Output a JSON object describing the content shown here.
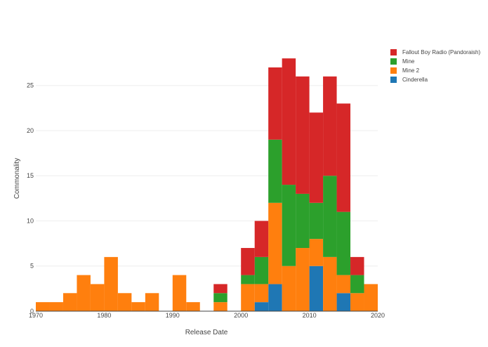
{
  "chart_data": {
    "type": "bar",
    "barmode": "stack",
    "title": "",
    "xlabel": "Release Date",
    "ylabel": "Commonality",
    "xlim": [
      1970,
      2020
    ],
    "ylim": [
      0,
      29.8
    ],
    "x_ticks": [
      "1970",
      "1980",
      "1990",
      "2000",
      "2010",
      "2020"
    ],
    "y_ticks": [
      "0",
      "5",
      "10",
      "15",
      "20",
      "25"
    ],
    "bin_width": 2,
    "bin_starts": [
      1970,
      1972,
      1974,
      1976,
      1978,
      1980,
      1982,
      1984,
      1986,
      1988,
      1990,
      1992,
      1994,
      1996,
      1998,
      2000,
      2002,
      2004,
      2006,
      2008,
      2010,
      2012,
      2014,
      2016,
      2018
    ],
    "legend_position": "right",
    "grid": true,
    "series": [
      {
        "name": "Cinderella",
        "color": "#1f77b4",
        "values": [
          0,
          0,
          0,
          0,
          0,
          0,
          0,
          0,
          0,
          0,
          0,
          0,
          0,
          0,
          0,
          0,
          1,
          3,
          0,
          0,
          5,
          0,
          2,
          0,
          0
        ]
      },
      {
        "name": "Mine 2",
        "color": "#ff7f0e",
        "values": [
          1,
          1,
          2,
          4,
          3,
          6,
          2,
          1,
          2,
          0,
          4,
          1,
          0,
          1,
          0,
          3,
          2,
          9,
          5,
          7,
          3,
          6,
          2,
          2,
          3
        ]
      },
      {
        "name": "Mine",
        "color": "#2ca02c",
        "values": [
          0,
          0,
          0,
          0,
          0,
          0,
          0,
          0,
          0,
          0,
          0,
          0,
          0,
          1,
          0,
          1,
          3,
          7,
          9,
          6,
          4,
          9,
          7,
          2,
          0
        ]
      },
      {
        "name": "Fallout Boy Radio (Pandoraish)",
        "color": "#d62728",
        "values": [
          0,
          0,
          0,
          0,
          0,
          0,
          0,
          0,
          0,
          0,
          0,
          0,
          0,
          1,
          0,
          3,
          4,
          8,
          14,
          13,
          10,
          11,
          12,
          2,
          0
        ]
      }
    ]
  },
  "legend": {
    "items": [
      {
        "label": "Fallout Boy Radio (Pandoraish)",
        "color": "#d62728"
      },
      {
        "label": "Mine",
        "color": "#2ca02c"
      },
      {
        "label": "Mine 2",
        "color": "#ff7f0e"
      },
      {
        "label": "Cinderella",
        "color": "#1f77b4"
      }
    ]
  }
}
